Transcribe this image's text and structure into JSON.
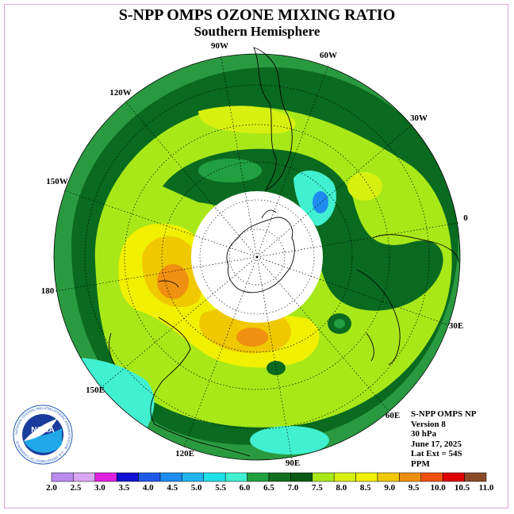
{
  "title": "S-NPP OMPS OZONE MIXING RATIO",
  "subtitle": "Southern Hemisphere",
  "longitude_labels": [
    "90W",
    "60W",
    "30W",
    "0",
    "30E",
    "60E",
    "90E",
    "120E",
    "150E",
    "180",
    "150W",
    "120W"
  ],
  "info": {
    "instrument": "S-NPP OMPS NP",
    "version": "Version 8",
    "level": "30 hPa",
    "date": "June 17, 2025",
    "lat_extent": "Lat Ext = 54S",
    "units": "PPM"
  },
  "logo": {
    "text": "NOAA",
    "ring_text": "NATIONAL OCEANIC AND ATMOSPHERIC ADMINISTRATION · U.S. DEPARTMENT OF COMMERCE"
  },
  "colorbar": {
    "ticks": [
      "2.0",
      "2.5",
      "3.0",
      "3.5",
      "4.0",
      "4.5",
      "5.0",
      "5.5",
      "6.0",
      "6.5",
      "7.0",
      "7.5",
      "8.0",
      "8.5",
      "9.0",
      "9.5",
      "10.0",
      "10.5",
      "11.0"
    ],
    "colors": [
      "#b98af0",
      "#d9a8f0",
      "#e020e0",
      "#1010d0",
      "#1e5ae8",
      "#1e8cf0",
      "#20b4f0",
      "#20e0e8",
      "#40f0d0",
      "#20a040",
      "#107020",
      "#0a5a18",
      "#a8e818",
      "#d8f010",
      "#f0f000",
      "#f0c800",
      "#f09010",
      "#f05010",
      "#e00000",
      "#8a4a2a"
    ]
  }
}
